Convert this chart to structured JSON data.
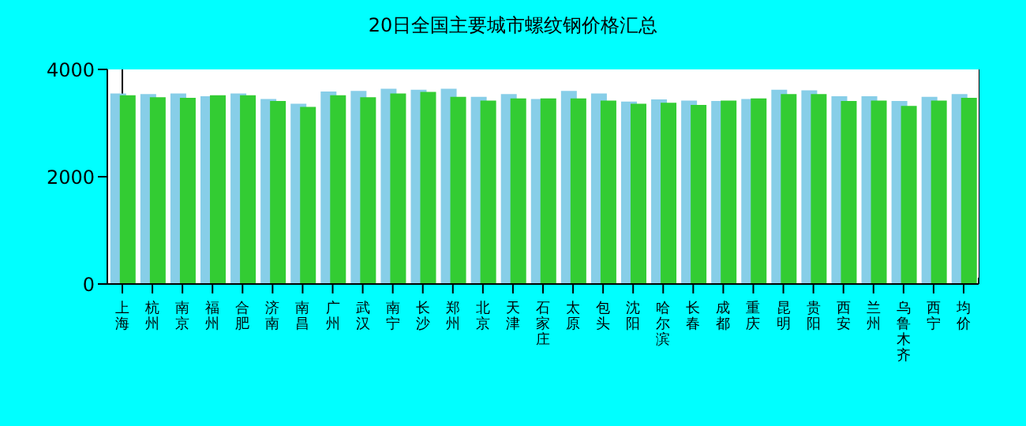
{
  "chart_data": {
    "type": "bar",
    "title": "20日全国主要城市螺纹钢价格汇总",
    "categories": [
      "上海",
      "杭州",
      "南京",
      "福州",
      "合肥",
      "济南",
      "南昌",
      "广州",
      "武汉",
      "南宁",
      "长沙",
      "郑州",
      "北京",
      "天津",
      "石家庄",
      "太原",
      "包头",
      "沈阳",
      "哈尔滨",
      "长春",
      "成都",
      "重庆",
      "昆明",
      "贵阳",
      "西安",
      "兰州",
      "乌鲁木齐",
      "西宁",
      "均价"
    ],
    "series": [
      {
        "color": "#87cee8",
        "values": [
          3550,
          3540,
          3550,
          3500,
          3550,
          3450,
          3360,
          3590,
          3600,
          3640,
          3620,
          3640,
          3490,
          3540,
          3450,
          3600,
          3550,
          3400,
          3440,
          3420,
          3410,
          3450,
          3620,
          3610,
          3500,
          3500,
          3410,
          3490,
          3540
        ]
      },
      {
        "color": "#33cc33",
        "values": [
          3520,
          3480,
          3470,
          3520,
          3520,
          3410,
          3300,
          3520,
          3480,
          3550,
          3580,
          3490,
          3420,
          3460,
          3460,
          3460,
          3420,
          3360,
          3380,
          3340,
          3420,
          3460,
          3540,
          3540,
          3410,
          3420,
          3320,
          3420,
          3470
        ]
      }
    ],
    "ylim": [
      0,
      4000
    ],
    "yticks": [
      0,
      2000,
      4000
    ],
    "grid": "x"
  }
}
